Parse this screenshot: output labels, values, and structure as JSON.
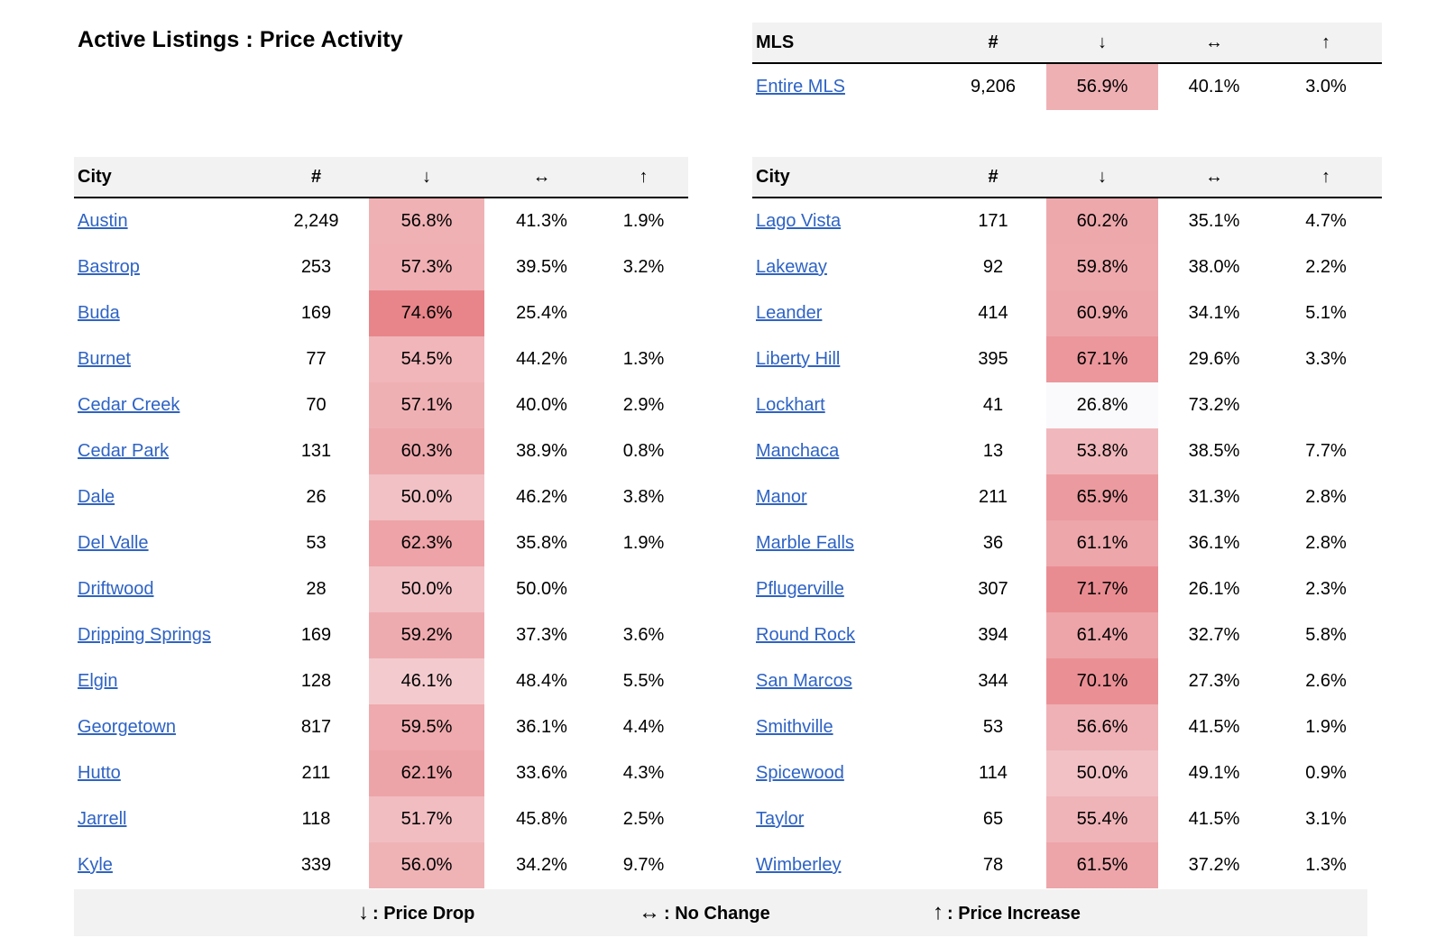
{
  "title": "Active Listings : Price Activity",
  "symbols": {
    "down": "↓",
    "same": "↔",
    "up": "↑"
  },
  "mls_table": {
    "headers": [
      "MLS",
      "#",
      "↓",
      "↔",
      "↑"
    ],
    "row": {
      "name": "Entire MLS",
      "count": "9,206",
      "drop": "56.9%",
      "same": "40.1%",
      "up": "3.0%"
    }
  },
  "left_table": {
    "headers": [
      "City",
      "#",
      "↓",
      "↔",
      "↑"
    ],
    "rows": [
      {
        "name": "Austin",
        "count": "2,249",
        "drop": "56.8%",
        "same": "41.3%",
        "up": "1.9%"
      },
      {
        "name": "Bastrop",
        "count": "253",
        "drop": "57.3%",
        "same": "39.5%",
        "up": "3.2%"
      },
      {
        "name": "Buda",
        "count": "169",
        "drop": "74.6%",
        "same": "25.4%",
        "up": ""
      },
      {
        "name": "Burnet",
        "count": "77",
        "drop": "54.5%",
        "same": "44.2%",
        "up": "1.3%"
      },
      {
        "name": "Cedar Creek",
        "count": "70",
        "drop": "57.1%",
        "same": "40.0%",
        "up": "2.9%"
      },
      {
        "name": "Cedar Park",
        "count": "131",
        "drop": "60.3%",
        "same": "38.9%",
        "up": "0.8%"
      },
      {
        "name": "Dale",
        "count": "26",
        "drop": "50.0%",
        "same": "46.2%",
        "up": "3.8%"
      },
      {
        "name": "Del Valle",
        "count": "53",
        "drop": "62.3%",
        "same": "35.8%",
        "up": "1.9%"
      },
      {
        "name": "Driftwood",
        "count": "28",
        "drop": "50.0%",
        "same": "50.0%",
        "up": ""
      },
      {
        "name": "Dripping Springs",
        "count": "169",
        "drop": "59.2%",
        "same": "37.3%",
        "up": "3.6%"
      },
      {
        "name": "Elgin",
        "count": "128",
        "drop": "46.1%",
        "same": "48.4%",
        "up": "5.5%"
      },
      {
        "name": "Georgetown",
        "count": "817",
        "drop": "59.5%",
        "same": "36.1%",
        "up": "4.4%"
      },
      {
        "name": "Hutto",
        "count": "211",
        "drop": "62.1%",
        "same": "33.6%",
        "up": "4.3%"
      },
      {
        "name": "Jarrell",
        "count": "118",
        "drop": "51.7%",
        "same": "45.8%",
        "up": "2.5%"
      },
      {
        "name": "Kyle",
        "count": "339",
        "drop": "56.0%",
        "same": "34.2%",
        "up": "9.7%"
      }
    ]
  },
  "right_table": {
    "headers": [
      "City",
      "#",
      "↓",
      "↔",
      "↑"
    ],
    "rows": [
      {
        "name": "Lago Vista",
        "count": "171",
        "drop": "60.2%",
        "same": "35.1%",
        "up": "4.7%"
      },
      {
        "name": "Lakeway",
        "count": "92",
        "drop": "59.8%",
        "same": "38.0%",
        "up": "2.2%"
      },
      {
        "name": "Leander",
        "count": "414",
        "drop": "60.9%",
        "same": "34.1%",
        "up": "5.1%"
      },
      {
        "name": "Liberty Hill",
        "count": "395",
        "drop": "67.1%",
        "same": "29.6%",
        "up": "3.3%"
      },
      {
        "name": "Lockhart",
        "count": "41",
        "drop": "26.8%",
        "same": "73.2%",
        "up": ""
      },
      {
        "name": "Manchaca",
        "count": "13",
        "drop": "53.8%",
        "same": "38.5%",
        "up": "7.7%"
      },
      {
        "name": "Manor",
        "count": "211",
        "drop": "65.9%",
        "same": "31.3%",
        "up": "2.8%"
      },
      {
        "name": "Marble Falls",
        "count": "36",
        "drop": "61.1%",
        "same": "36.1%",
        "up": "2.8%"
      },
      {
        "name": "Pflugerville",
        "count": "307",
        "drop": "71.7%",
        "same": "26.1%",
        "up": "2.3%"
      },
      {
        "name": "Round Rock",
        "count": "394",
        "drop": "61.4%",
        "same": "32.7%",
        "up": "5.8%"
      },
      {
        "name": "San Marcos",
        "count": "344",
        "drop": "70.1%",
        "same": "27.3%",
        "up": "2.6%"
      },
      {
        "name": "Smithville",
        "count": "53",
        "drop": "56.6%",
        "same": "41.5%",
        "up": "1.9%"
      },
      {
        "name": "Spicewood",
        "count": "114",
        "drop": "50.0%",
        "same": "49.1%",
        "up": "0.9%"
      },
      {
        "name": "Taylor",
        "count": "65",
        "drop": "55.4%",
        "same": "41.5%",
        "up": "3.1%"
      },
      {
        "name": "Wimberley",
        "count": "78",
        "drop": "61.5%",
        "same": "37.2%",
        "up": "1.3%"
      }
    ]
  },
  "legend": {
    "drop": {
      "symbol": "↓",
      "label": ": Price Drop"
    },
    "same": {
      "symbol": "↔",
      "label": ": No Change"
    },
    "up": {
      "symbol": "↑",
      "label": ": Price Increase"
    }
  },
  "colors": {
    "link": "#2e63c4",
    "header_bg": "#f2f2f2",
    "heat_low": "#fafafc",
    "heat_high": "#e8858a"
  }
}
